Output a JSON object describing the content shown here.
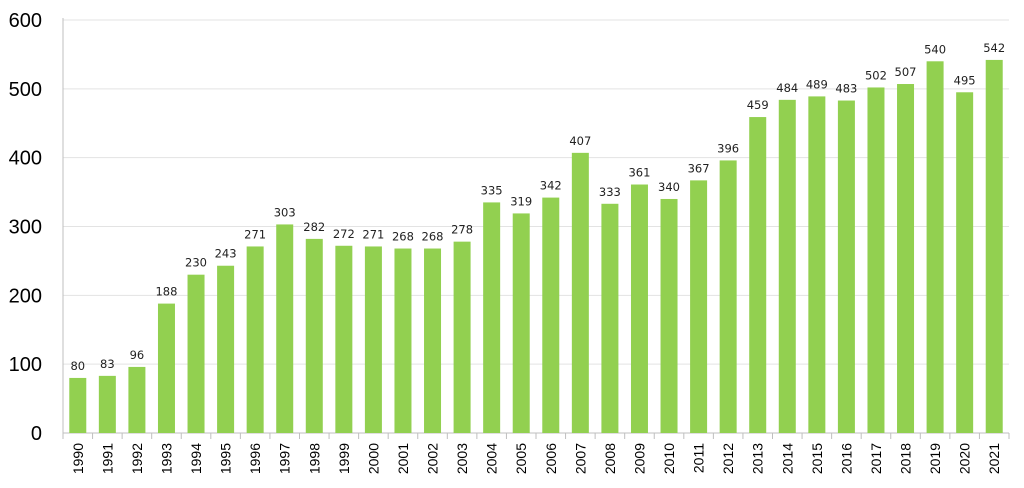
{
  "chart_data": {
    "type": "bar",
    "title": "",
    "xlabel": "",
    "ylabel": "",
    "ylim": [
      0,
      600
    ],
    "yticks": [
      0,
      100,
      200,
      300,
      400,
      500,
      600
    ],
    "grid": true,
    "legend": "none",
    "bar_color": "#92d050",
    "categories": [
      "1990",
      "1991",
      "1992",
      "1993",
      "1994",
      "1995",
      "1996",
      "1997",
      "1998",
      "1999",
      "2000",
      "2001",
      "2002",
      "2003",
      "2004",
      "2005",
      "2006",
      "2007",
      "2008",
      "2009",
      "2010",
      "2011",
      "2012",
      "2013",
      "2014",
      "2015",
      "2016",
      "2017",
      "2018",
      "2019",
      "2020",
      "2021"
    ],
    "values": [
      80,
      83,
      96,
      188,
      230,
      243,
      271,
      303,
      282,
      272,
      271,
      268,
      268,
      278,
      335,
      319,
      342,
      407,
      333,
      361,
      340,
      367,
      396,
      459,
      484,
      489,
      483,
      502,
      507,
      540,
      495,
      542
    ]
  }
}
